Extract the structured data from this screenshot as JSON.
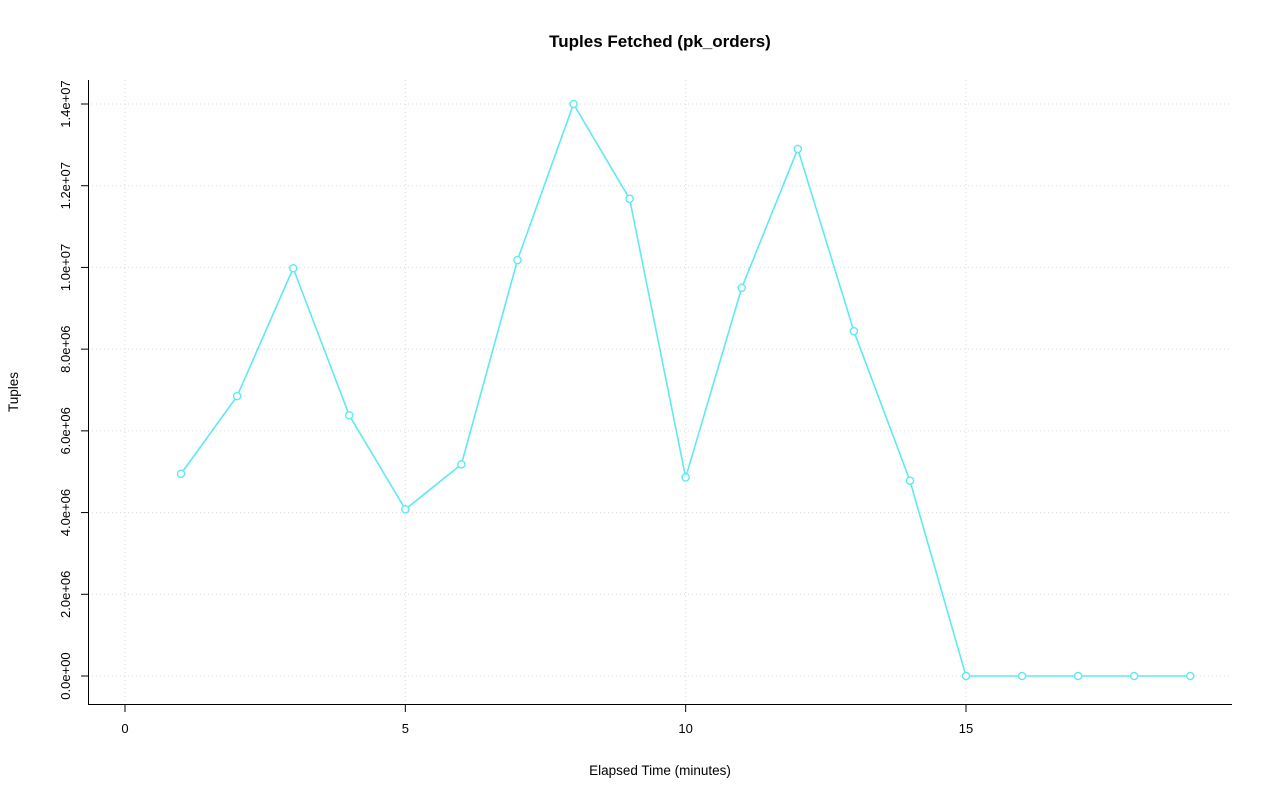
{
  "chart_data": {
    "type": "line",
    "title": "Tuples Fetched (pk_orders)",
    "xlabel": "Elapsed Time (minutes)",
    "ylabel": "Tuples",
    "x": [
      1,
      2,
      3,
      4,
      5,
      6,
      7,
      8,
      9,
      10,
      11,
      12,
      13,
      14,
      15,
      16,
      17,
      18,
      19
    ],
    "values": [
      4950000,
      6850000,
      9980000,
      6380000,
      4080000,
      5180000,
      10180000,
      14000000,
      11680000,
      4860000,
      9500000,
      12900000,
      8440000,
      4780000,
      0,
      0,
      0,
      0,
      0
    ],
    "xlim": [
      -0.65,
      19.7
    ],
    "ylim": [
      0,
      14000000
    ],
    "x_ticks": [
      0,
      5,
      10,
      15
    ],
    "x_tick_labels": [
      "0",
      "5",
      "10",
      "15"
    ],
    "y_ticks": [
      0,
      2000000,
      4000000,
      6000000,
      8000000,
      10000000,
      12000000,
      14000000
    ],
    "y_tick_labels": [
      "0.0e+00",
      "2.0e+06",
      "4.0e+06",
      "6.0e+06",
      "8.0e+06",
      "1.0e+07",
      "1.2e+07",
      "1.4e+07"
    ],
    "legend": "none",
    "grid": "dotted",
    "marker": "open-circle",
    "line_color": "#5fe9f2",
    "marker_fill": "#ffffff",
    "grid_color": "#d9d9d9",
    "axis_color": "#000000",
    "background": "#ffffff"
  }
}
